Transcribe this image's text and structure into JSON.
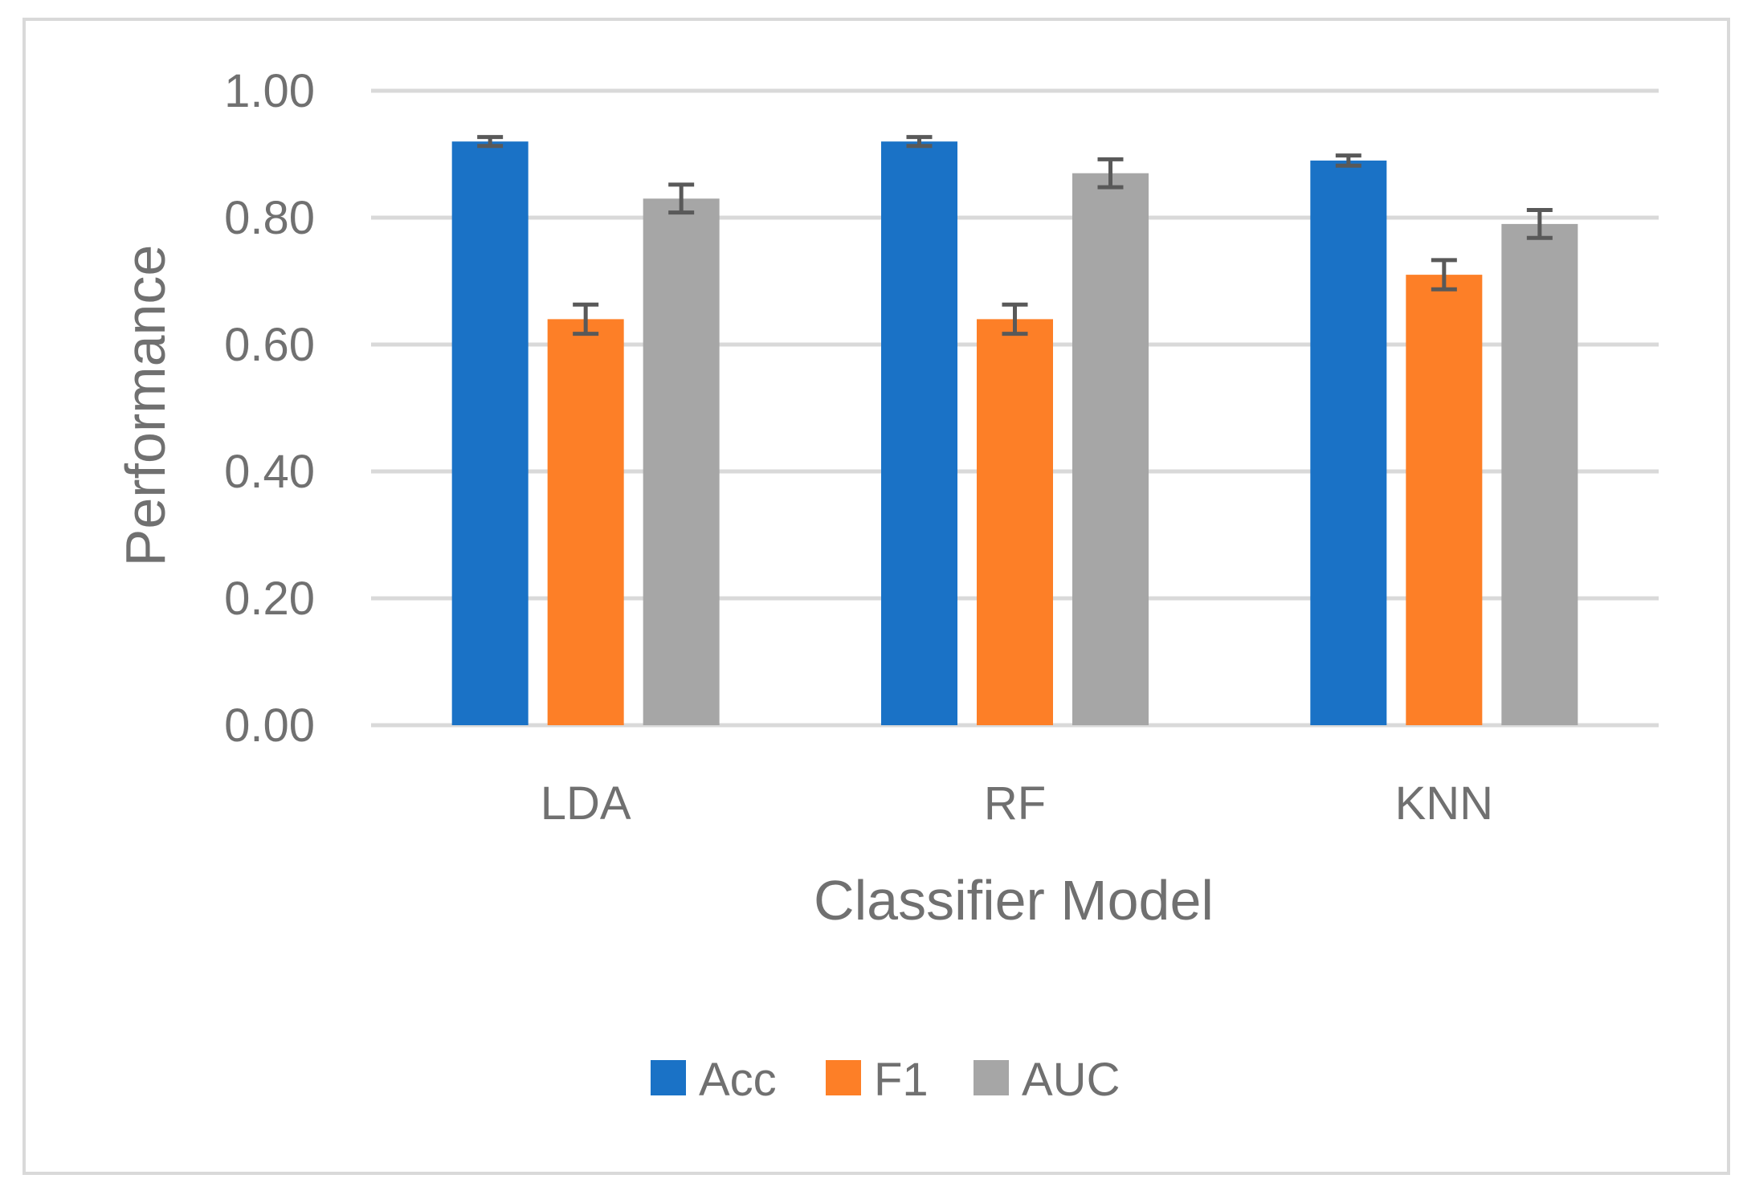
{
  "chart_data": {
    "type": "bar",
    "categories": [
      "LDA",
      "RF",
      "KNN"
    ],
    "series": [
      {
        "name": "Acc",
        "color": "#1a72c6",
        "values": [
          0.92,
          0.92,
          0.89
        ],
        "errors": [
          0.007,
          0.007,
          0.008
        ]
      },
      {
        "name": "F1",
        "color": "#fd7f27",
        "values": [
          0.64,
          0.64,
          0.71
        ],
        "errors": [
          0.023,
          0.023,
          0.023
        ]
      },
      {
        "name": "AUC",
        "color": "#a6a6a6",
        "values": [
          0.83,
          0.87,
          0.79
        ],
        "errors": [
          0.022,
          0.022,
          0.022
        ]
      }
    ],
    "xlabel": "Classifier Model",
    "ylabel": "Performance",
    "ylim": [
      0,
      1
    ],
    "yticks": [
      "0.00",
      "0.20",
      "0.40",
      "0.60",
      "0.80",
      "1.00"
    ],
    "grid": true,
    "legend_position": "bottom"
  }
}
